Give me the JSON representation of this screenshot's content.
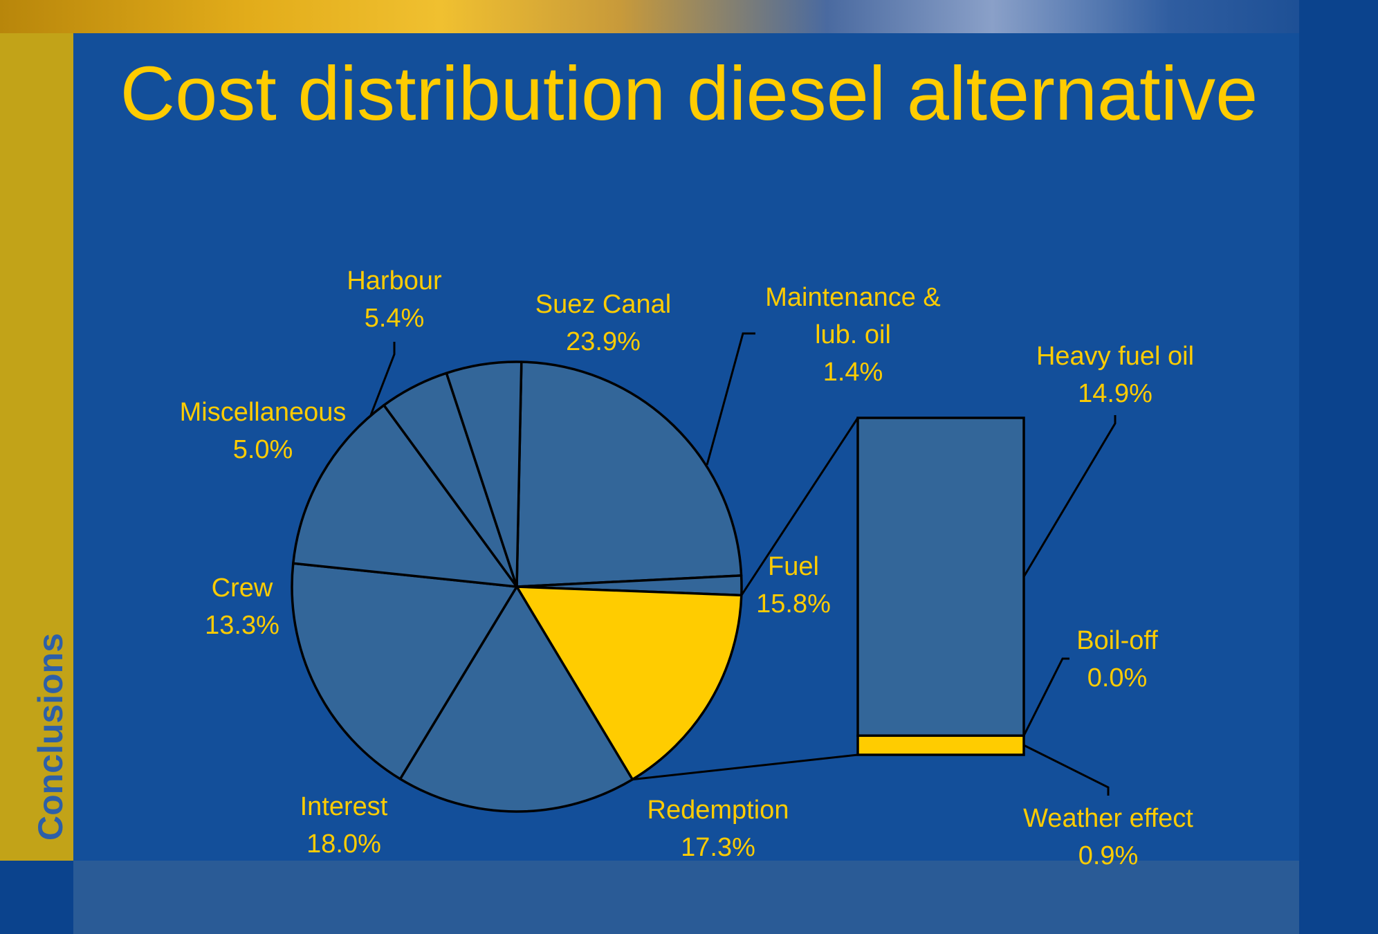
{
  "slide": {
    "title": "Cost distribution diesel alternative",
    "section_label": "Conclusions"
  },
  "colors": {
    "background": "#134f9a",
    "slice_fill": "#336699",
    "highlight": "#ffcc00",
    "text": "#ffcc00",
    "stroke": "#000000"
  },
  "chart_data": [
    {
      "type": "pie",
      "slices": [
        {
          "label": "Suez Canal",
          "value": 23.9,
          "value_label": "23.9%"
        },
        {
          "label": "Maintenance &",
          "label_line2": "lub. oil",
          "value": 1.4,
          "value_label": "1.4%"
        },
        {
          "label": "Fuel",
          "value": 15.8,
          "value_label": "15.8%",
          "highlighted": true
        },
        {
          "label": "Redemption",
          "value": 17.3,
          "value_label": "17.3%"
        },
        {
          "label": "Interest",
          "value": 18.0,
          "value_label": "18.0%"
        },
        {
          "label": "Crew",
          "value": 13.3,
          "value_label": "13.3%"
        },
        {
          "label": "Miscellaneous",
          "value": 5.0,
          "value_label": "5.0%"
        },
        {
          "label": "Harbour",
          "value": 5.4,
          "value_label": "5.4%"
        }
      ],
      "legend": "none"
    },
    {
      "type": "bar",
      "stacked": true,
      "breakdown_of": "Fuel",
      "segments": [
        {
          "label": "Heavy fuel oil",
          "value": 14.9,
          "value_label": "14.9%"
        },
        {
          "label": "Boil-off",
          "value": 0.0,
          "value_label": "0.0%"
        },
        {
          "label": "Weather effect",
          "value": 0.9,
          "value_label": "0.9%",
          "highlighted": true
        }
      ]
    }
  ]
}
